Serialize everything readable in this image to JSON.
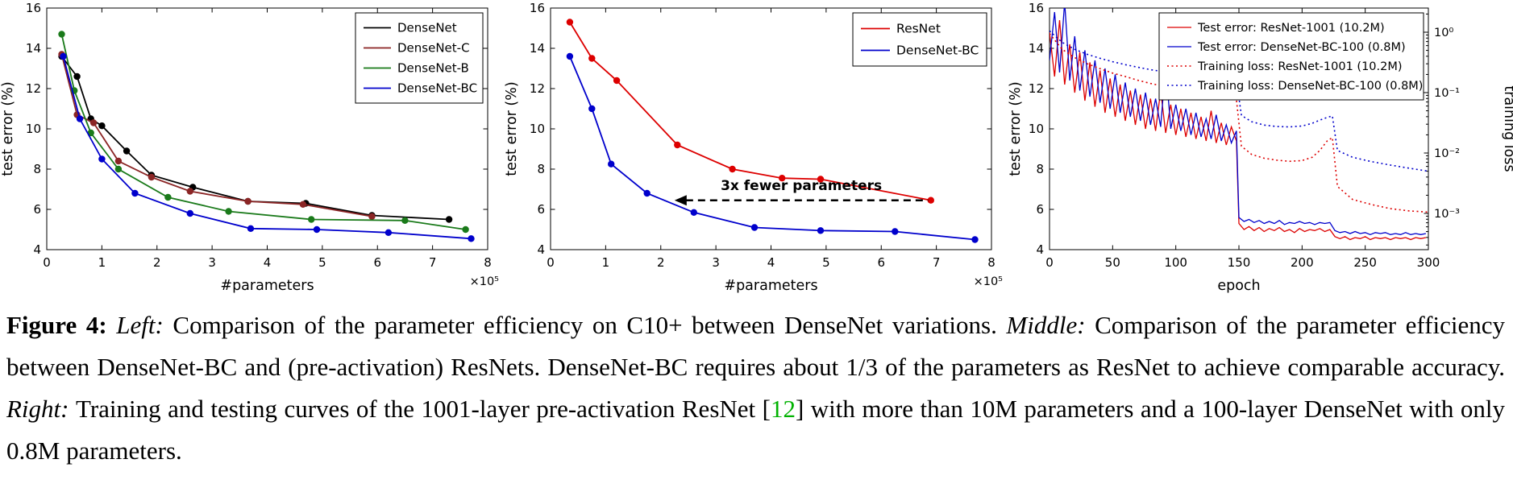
{
  "caption": {
    "segments": [
      {
        "text": "Figure 4: ",
        "style": "bold"
      },
      {
        "text": "Left: ",
        "style": "italic"
      },
      {
        "text": "Comparison of the parameter efficiency on C10+ between DenseNet variations. ",
        "style": "normal"
      },
      {
        "text": "Middle: ",
        "style": "italic"
      },
      {
        "text": "Comparison of the parameter efficiency between DenseNet-BC and (pre-activation) ResNets. DenseNet-BC requires about 1/3 of the parameters as ResNet to achieve comparable accuracy. ",
        "style": "normal"
      },
      {
        "text": "Right: ",
        "style": "italic"
      },
      {
        "text": "Training and testing curves of the 1001-layer pre-activation ResNet [",
        "style": "normal"
      },
      {
        "text": "12",
        "style": "green"
      },
      {
        "text": "] with more than 10M parameters and a 100-layer DenseNet with only 0.8M parameters.",
        "style": "normal"
      }
    ]
  },
  "chart_data": [
    {
      "id": "densenet-variants",
      "type": "line",
      "xlabel": "#parameters",
      "ylabel": "test error (%)",
      "x_offset_label": "×10⁵",
      "xlim": [
        0,
        8
      ],
      "ylim": [
        4,
        16
      ],
      "xticks": [
        0,
        1,
        2,
        3,
        4,
        5,
        6,
        7,
        8
      ],
      "yticks": [
        4,
        6,
        8,
        10,
        12,
        14,
        16
      ],
      "legend_position": "top-right",
      "grid": false,
      "series": [
        {
          "name": "DenseNet",
          "color": "#000000",
          "style": "solid",
          "marker": true,
          "x": [
            0.27,
            0.55,
            0.8,
            1.0,
            1.45,
            1.9,
            2.65,
            3.65,
            4.7,
            5.9,
            7.3
          ],
          "y": [
            13.6,
            12.6,
            10.5,
            10.15,
            8.9,
            7.7,
            7.1,
            6.4,
            6.3,
            5.7,
            5.5
          ]
        },
        {
          "name": "DenseNet-C",
          "color": "#8b2525",
          "style": "solid",
          "marker": true,
          "x": [
            0.27,
            0.55,
            0.85,
            1.3,
            1.9,
            2.6,
            3.65,
            4.65,
            5.9
          ],
          "y": [
            13.7,
            10.7,
            10.3,
            8.4,
            7.6,
            6.9,
            6.4,
            6.25,
            5.65
          ]
        },
        {
          "name": "DenseNet-B",
          "color": "#1a7a1a",
          "style": "solid",
          "marker": true,
          "x": [
            0.27,
            0.5,
            0.8,
            1.3,
            2.2,
            3.3,
            4.8,
            6.5,
            7.6
          ],
          "y": [
            14.7,
            11.9,
            9.8,
            8.0,
            6.6,
            5.9,
            5.5,
            5.45,
            5.0
          ]
        },
        {
          "name": "DenseNet-BC",
          "color": "#0000cc",
          "style": "solid",
          "marker": true,
          "x": [
            0.3,
            0.6,
            1.0,
            1.6,
            2.6,
            3.7,
            4.9,
            6.2,
            7.7
          ],
          "y": [
            13.6,
            10.5,
            8.5,
            6.8,
            5.8,
            5.05,
            5.0,
            4.85,
            4.55
          ]
        }
      ]
    },
    {
      "id": "resnet-vs-densenet-bc",
      "type": "line",
      "xlabel": "#parameters",
      "ylabel": "test error (%)",
      "x_offset_label": "×10⁵",
      "xlim": [
        0,
        8
      ],
      "ylim": [
        4,
        16
      ],
      "xticks": [
        0,
        1,
        2,
        3,
        4,
        5,
        6,
        7,
        8
      ],
      "yticks": [
        4,
        6,
        8,
        10,
        12,
        14,
        16
      ],
      "legend_position": "top-right",
      "grid": false,
      "annotation": {
        "text": "3x fewer parameters",
        "arrow_y": 6.45,
        "arrow_x_start": 6.85,
        "arrow_x_end": 2.25
      },
      "series": [
        {
          "name": "ResNet",
          "color": "#dd0000",
          "style": "solid",
          "marker": true,
          "x": [
            0.35,
            0.75,
            1.2,
            2.3,
            3.3,
            4.2,
            4.9,
            6.9
          ],
          "y": [
            15.3,
            13.5,
            12.4,
            9.2,
            8.0,
            7.55,
            7.5,
            6.45
          ]
        },
        {
          "name": "DenseNet-BC",
          "color": "#0000cc",
          "style": "solid",
          "marker": true,
          "x": [
            0.35,
            0.75,
            1.1,
            1.75,
            2.6,
            3.7,
            4.9,
            6.25,
            7.7
          ],
          "y": [
            13.6,
            11.0,
            8.25,
            6.8,
            5.85,
            5.1,
            4.95,
            4.9,
            4.5
          ]
        }
      ]
    },
    {
      "id": "training-testing-curves",
      "type": "line",
      "xlabel": "epoch",
      "ylabel": "test error (%)",
      "ylabel_right": "training loss",
      "xlim": [
        0,
        300
      ],
      "ylim": [
        4,
        16
      ],
      "xticks": [
        0,
        50,
        100,
        150,
        200,
        250,
        300
      ],
      "yticks": [
        4,
        6,
        8,
        10,
        12,
        14,
        16
      ],
      "legend_position": "top-right",
      "grid": false,
      "right_axis": {
        "log_range": [
          -3.6,
          0.4
        ],
        "ticks": [
          {
            "label": "10⁰",
            "exp": 0
          },
          {
            "label": "10⁻¹",
            "exp": -1
          },
          {
            "label": "10⁻²",
            "exp": -2
          },
          {
            "label": "10⁻³",
            "exp": -3
          }
        ]
      },
      "series": [
        {
          "name": "Test error: ResNet-1001 (10.2M)",
          "color": "#dd0000",
          "style": "solid",
          "width": 1.3,
          "axis": "left",
          "x": [
            0,
            4,
            8,
            12,
            16,
            20,
            24,
            28,
            32,
            36,
            40,
            44,
            48,
            52,
            56,
            60,
            64,
            68,
            72,
            76,
            80,
            84,
            88,
            92,
            96,
            100,
            104,
            108,
            112,
            116,
            120,
            124,
            128,
            132,
            136,
            140,
            144,
            148,
            150,
            154,
            158,
            162,
            166,
            170,
            174,
            178,
            182,
            186,
            190,
            194,
            198,
            202,
            206,
            210,
            214,
            218,
            222,
            226,
            230,
            234,
            238,
            242,
            246,
            250,
            254,
            258,
            262,
            266,
            270,
            274,
            278,
            282,
            286,
            290,
            294,
            298
          ],
          "y": [
            14.8,
            12.6,
            15.4,
            12.2,
            14.2,
            11.8,
            13.8,
            11.4,
            13.3,
            11.1,
            12.9,
            10.8,
            12.5,
            10.6,
            12.2,
            10.4,
            11.9,
            10.2,
            11.7,
            10.0,
            11.5,
            9.9,
            11.9,
            9.8,
            11.2,
            9.7,
            11.0,
            9.6,
            10.8,
            9.5,
            10.6,
            9.4,
            10.9,
            9.3,
            10.3,
            9.2,
            10.1,
            9.4,
            5.3,
            5.0,
            5.15,
            4.95,
            5.1,
            4.9,
            5.05,
            4.95,
            5.1,
            4.9,
            5.0,
            4.85,
            5.05,
            4.9,
            5.0,
            4.95,
            5.05,
            4.9,
            5.0,
            4.65,
            4.55,
            4.65,
            4.5,
            4.6,
            4.55,
            4.65,
            4.5,
            4.6,
            4.55,
            4.6,
            4.5,
            4.6,
            4.55,
            4.6,
            4.5,
            4.6,
            4.55,
            4.6
          ]
        },
        {
          "name": "Test error: DenseNet-BC-100 (0.8M)",
          "color": "#0000cc",
          "style": "solid",
          "width": 1.3,
          "axis": "left",
          "x": [
            0,
            4,
            8,
            12,
            16,
            20,
            24,
            28,
            32,
            36,
            40,
            44,
            48,
            52,
            56,
            60,
            64,
            68,
            72,
            76,
            80,
            84,
            88,
            92,
            96,
            100,
            104,
            108,
            112,
            116,
            120,
            124,
            128,
            132,
            136,
            140,
            144,
            148,
            150,
            154,
            158,
            162,
            166,
            170,
            174,
            178,
            182,
            186,
            190,
            194,
            198,
            202,
            206,
            210,
            214,
            218,
            222,
            226,
            230,
            234,
            238,
            242,
            246,
            250,
            254,
            258,
            262,
            266,
            270,
            274,
            278,
            282,
            286,
            290,
            294,
            298
          ],
          "y": [
            13.4,
            15.8,
            12.8,
            16.3,
            12.4,
            14.6,
            11.9,
            13.9,
            11.6,
            13.4,
            11.3,
            13.0,
            11.0,
            12.7,
            10.8,
            12.3,
            10.6,
            12.0,
            10.4,
            11.8,
            10.2,
            11.5,
            10.1,
            13.2,
            10.0,
            11.2,
            9.9,
            11.0,
            9.7,
            10.8,
            9.6,
            10.5,
            9.5,
            10.7,
            9.4,
            10.2,
            9.3,
            9.9,
            5.6,
            5.4,
            5.5,
            5.35,
            5.45,
            5.3,
            5.4,
            5.3,
            5.45,
            5.25,
            5.35,
            5.3,
            5.4,
            5.3,
            5.35,
            5.25,
            5.35,
            5.3,
            5.35,
            4.95,
            4.85,
            4.9,
            4.8,
            4.9,
            4.8,
            4.85,
            4.75,
            4.85,
            4.8,
            4.85,
            4.75,
            4.8,
            4.75,
            4.85,
            4.75,
            4.8,
            4.75,
            4.8
          ]
        },
        {
          "name": "Training loss: ResNet-1001 (10.2M)",
          "color": "#dd0000",
          "style": "dotted",
          "width": 1.6,
          "axis": "right",
          "x": [
            0,
            10,
            20,
            30,
            40,
            50,
            60,
            70,
            80,
            90,
            100,
            110,
            120,
            130,
            140,
            148,
            152,
            160,
            170,
            180,
            190,
            200,
            208,
            214,
            220,
            224,
            228,
            240,
            255,
            270,
            285,
            300
          ],
          "y": [
            0.95,
            0.52,
            0.38,
            0.3,
            0.25,
            0.21,
            0.185,
            0.16,
            0.142,
            0.128,
            0.115,
            0.104,
            0.095,
            0.087,
            0.08,
            0.076,
            0.013,
            0.0095,
            0.0082,
            0.0076,
            0.0073,
            0.0075,
            0.0085,
            0.011,
            0.016,
            0.018,
            0.0028,
            0.0017,
            0.0014,
            0.0012,
            0.0011,
            0.00105
          ]
        },
        {
          "name": "Training loss: DenseNet-BC-100 (0.8M)",
          "color": "#0000cc",
          "style": "dotted",
          "width": 1.6,
          "axis": "right",
          "x": [
            0,
            10,
            20,
            30,
            40,
            50,
            60,
            70,
            80,
            90,
            100,
            110,
            120,
            130,
            140,
            148,
            152,
            160,
            170,
            180,
            190,
            200,
            208,
            214,
            220,
            224,
            228,
            240,
            255,
            270,
            285,
            300
          ],
          "y": [
            1.05,
            0.68,
            0.52,
            0.43,
            0.37,
            0.325,
            0.29,
            0.263,
            0.24,
            0.222,
            0.207,
            0.194,
            0.183,
            0.174,
            0.166,
            0.16,
            0.042,
            0.033,
            0.029,
            0.0275,
            0.027,
            0.028,
            0.031,
            0.035,
            0.039,
            0.041,
            0.011,
            0.0085,
            0.0072,
            0.0063,
            0.0056,
            0.005
          ]
        }
      ]
    }
  ]
}
